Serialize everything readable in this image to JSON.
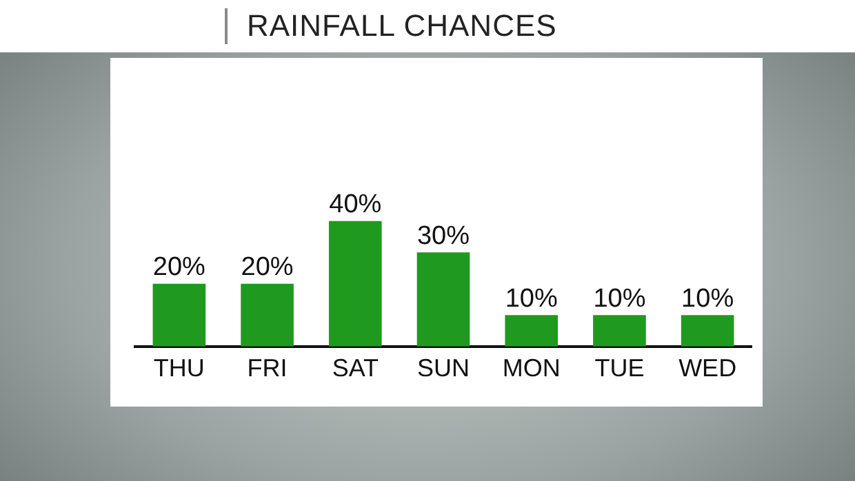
{
  "chart_data": {
    "type": "bar",
    "title": "RAINFALL CHANCES",
    "categories": [
      "THU",
      "FRI",
      "SAT",
      "SUN",
      "MON",
      "TUE",
      "WED"
    ],
    "values": [
      20,
      20,
      40,
      30,
      10,
      10,
      10
    ],
    "value_labels": [
      "20%",
      "20%",
      "40%",
      "30%",
      "10%",
      "10%",
      "10%"
    ],
    "color": "#1f9a1f",
    "grid": false,
    "legend": false
  }
}
